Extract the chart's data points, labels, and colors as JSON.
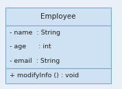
{
  "title": "Employee",
  "attributes": [
    "- name  : String",
    "- age      : int",
    "- email  : String"
  ],
  "methods": [
    "+ modifyInfo () : void"
  ],
  "bg_color": "#cfe2f3",
  "border_color": "#7aa8c7",
  "text_color": "#222222",
  "title_fontsize": 7.5,
  "attr_fontsize": 6.8,
  "method_fontsize": 6.8,
  "fig_bg": "#e8f0f8"
}
